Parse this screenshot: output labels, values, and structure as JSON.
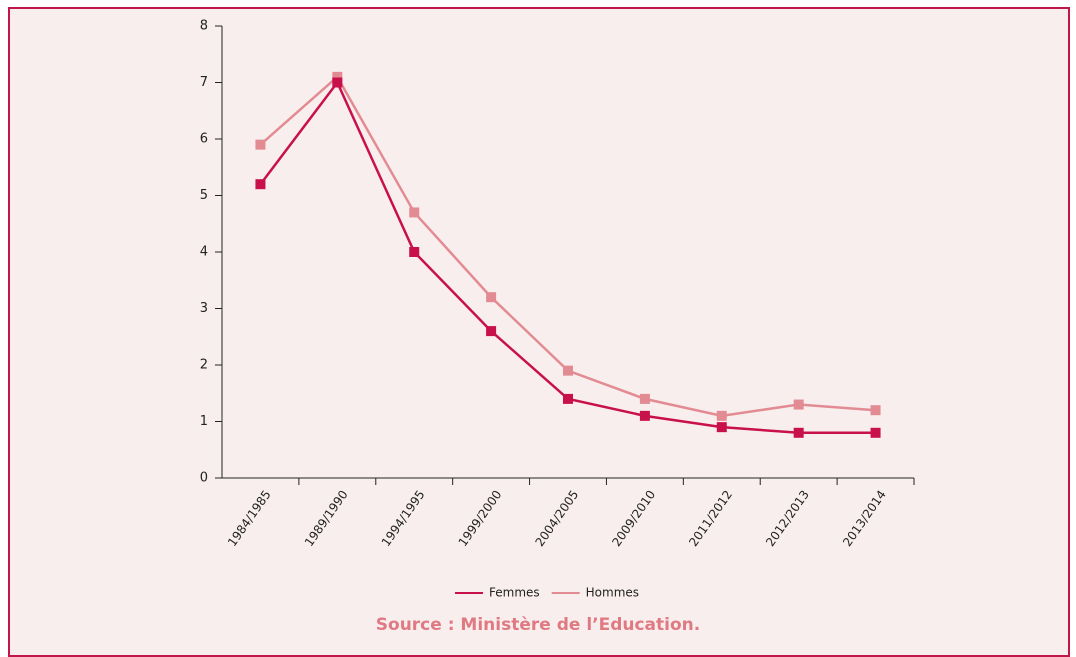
{
  "chart_data": {
    "type": "line",
    "categories": [
      "1984/1985",
      "1989/1990",
      "1994/1995",
      "1999/2000",
      "2004/2005",
      "2009/2010",
      "2011/2012",
      "2012/2013",
      "2013/2014"
    ],
    "series": [
      {
        "name": "Femmes",
        "color": "#c8104a",
        "values": [
          5.2,
          7.0,
          4.0,
          2.6,
          1.4,
          1.1,
          0.9,
          0.8,
          0.8
        ]
      },
      {
        "name": "Hommes",
        "color": "#e28b92",
        "values": [
          5.9,
          7.1,
          4.7,
          3.2,
          1.9,
          1.4,
          1.1,
          1.3,
          1.2
        ]
      }
    ],
    "ylim": [
      0,
      8
    ],
    "yticks": [
      0,
      1,
      2,
      3,
      4,
      5,
      6,
      7,
      8
    ],
    "source": "Source : Ministère de l’Education."
  }
}
